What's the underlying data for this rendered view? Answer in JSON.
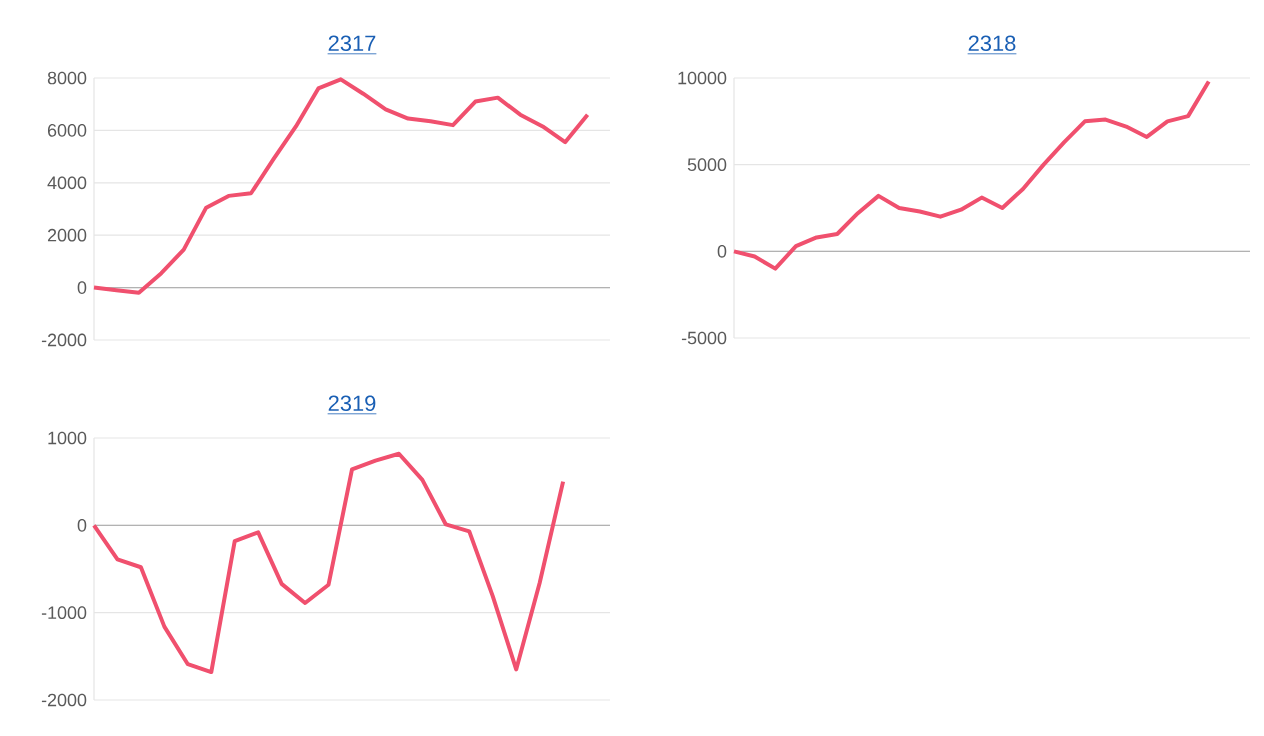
{
  "chart_data": [
    {
      "type": "line",
      "title": "2317",
      "categories": [
        null,
        null,
        null,
        null,
        null,
        null,
        null,
        null,
        null,
        null,
        null,
        null,
        null,
        null,
        null,
        null,
        null,
        null,
        null,
        null,
        null,
        null,
        null,
        null
      ],
      "values": [
        0,
        -100,
        -200,
        550,
        1450,
        3050,
        3500,
        3600,
        4900,
        6150,
        7600,
        7950,
        7400,
        6800,
        6450,
        6350,
        6200,
        7100,
        7250,
        6600,
        6150,
        5550,
        6600,
        null
      ],
      "color": "#f0506e",
      "ylim": [
        -2000,
        8000
      ],
      "yticks": [
        -2000,
        0,
        2000,
        4000,
        6000,
        8000
      ],
      "grid": "y",
      "tick_labels": "y",
      "marker": "none"
    },
    {
      "type": "line",
      "title": "2318",
      "categories": [
        null,
        null,
        null,
        null,
        null,
        null,
        null,
        null,
        null,
        null,
        null,
        null,
        null,
        null,
        null,
        null,
        null,
        null,
        null,
        null,
        null,
        null,
        null,
        null,
        null,
        null
      ],
      "values": [
        0,
        -300,
        -1000,
        300,
        800,
        1000,
        2200,
        3200,
        2500,
        2300,
        2000,
        2400,
        3100,
        2500,
        3600,
        5000,
        6300,
        7500,
        7600,
        7200,
        6600,
        7500,
        7800,
        9800,
        null,
        null
      ],
      "color": "#f0506e",
      "ylim": [
        -5000,
        10000
      ],
      "yticks": [
        -5000,
        0,
        5000,
        10000
      ],
      "grid": "y",
      "tick_labels": "y",
      "marker": "none"
    },
    {
      "type": "line",
      "title": "2319",
      "categories": [
        null,
        null,
        null,
        null,
        null,
        null,
        null,
        null,
        null,
        null,
        null,
        null,
        null,
        null,
        null,
        null,
        null,
        null,
        null,
        null,
        null,
        null,
        null
      ],
      "values": [
        0,
        -390,
        -480,
        -1160,
        -1590,
        -1680,
        -180,
        -80,
        -670,
        -890,
        -680,
        640,
        740,
        820,
        520,
        10,
        -70,
        -810,
        -1650,
        -660,
        500,
        null,
        null
      ],
      "color": "#f0506e",
      "ylim": [
        -2000,
        1000
      ],
      "yticks": [
        -2000,
        -1000,
        0,
        1000
      ],
      "grid": "y",
      "tick_labels": "y",
      "marker": "none"
    }
  ]
}
